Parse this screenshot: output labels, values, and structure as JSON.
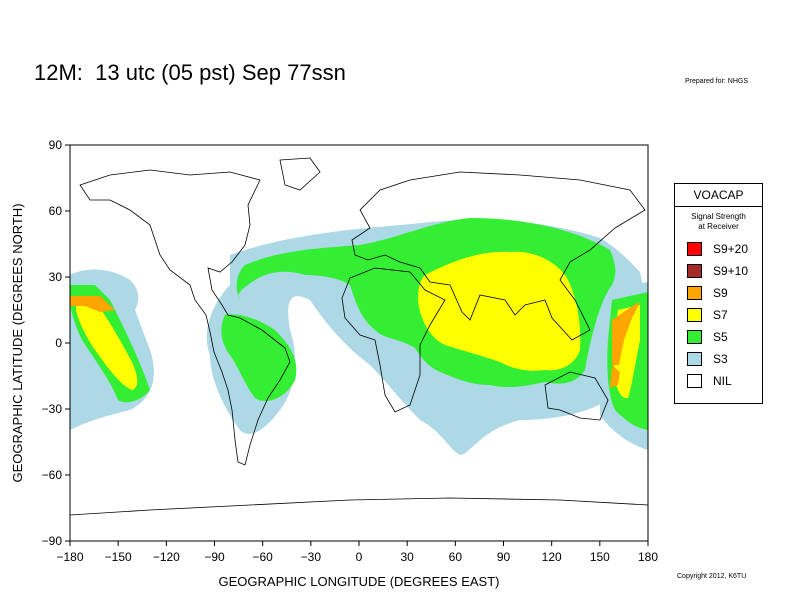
{
  "title": "12M:  13 utc (05 pst) Sep 77ssn",
  "prepared_for": "Prepared for: NHGS",
  "copyright": "Copyright 2012, K6TU",
  "map": {
    "xlabel": "GEOGRAPHIC LONGITUDE (DEGREES EAST)",
    "ylabel": "GEOGRAPHIC LATITUDE (DEGREES NORTH)",
    "xlim": [
      -180,
      180
    ],
    "ylim": [
      -90,
      90
    ],
    "x_ticks": [
      "−180",
      "−150",
      "−120",
      "−90",
      "−60",
      "−30",
      "0",
      "30",
      "60",
      "90",
      "120",
      "150",
      "180"
    ],
    "y_ticks": [
      "90",
      "60",
      "30",
      "0",
      "−30",
      "−60",
      "−90"
    ]
  },
  "legend": {
    "title": "VOACAP",
    "subtitle_line1": "Signal Strength",
    "subtitle_line2": "at Receiver",
    "items": [
      {
        "label": "S9+20",
        "color": "#ff0000"
      },
      {
        "label": "S9+10",
        "color": "#a52a2a"
      },
      {
        "label": "S9",
        "color": "#ffa500"
      },
      {
        "label": "S7",
        "color": "#ffff00"
      },
      {
        "label": "S5",
        "color": "#33ee33"
      },
      {
        "label": "S3",
        "color": "#add8e6"
      },
      {
        "label": "NIL",
        "color": "#ffffff"
      }
    ]
  }
}
